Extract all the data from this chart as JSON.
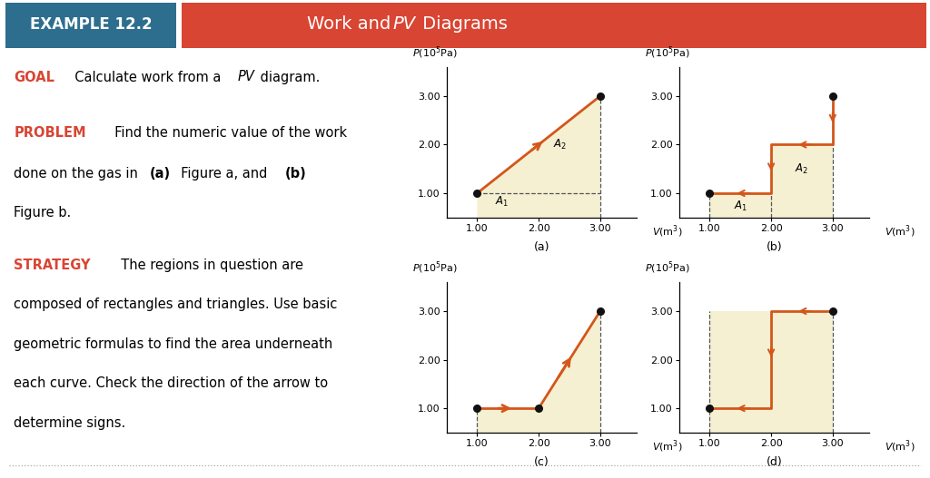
{
  "title_left": "EXAMPLE 12.2",
  "title_right_normal": "Work and ",
  "title_right_italic": "PV",
  "title_right_normal2": " Diagrams",
  "header_color_left": "#2d6e8e",
  "header_color_right": "#d94533",
  "bg_color": "#ffffff",
  "fill_color": "#f5f0d2",
  "line_color": "#d4561a",
  "dot_color": "#111111",
  "dash_color": "#555555",
  "accent_color": "#d94533",
  "subplot_labels": [
    "(a)",
    "(b)",
    "(c)",
    "(d)"
  ],
  "xlim": [
    0.5,
    3.6
  ],
  "ylim": [
    0.5,
    3.6
  ],
  "xtick_vals": [
    1.0,
    2.0,
    3.0
  ],
  "ytick_vals": [
    1.0,
    2.0,
    3.0
  ],
  "xtick_labels": [
    "1.00",
    "2.00",
    "3.00"
  ],
  "ytick_labels": [
    "1.00",
    "2.00",
    "3.00"
  ]
}
